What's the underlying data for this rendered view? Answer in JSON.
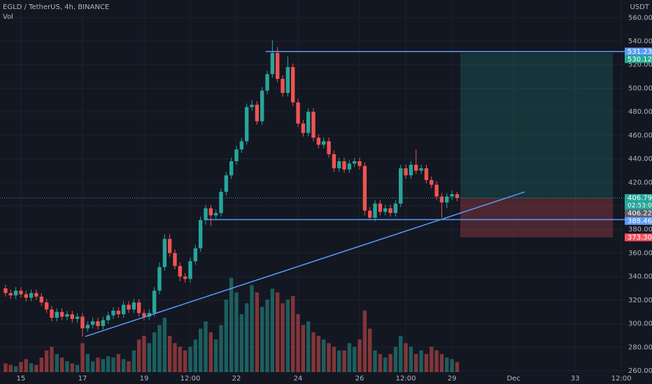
{
  "chart_data": {
    "type": "candlestick",
    "title": "EGLD / TetherUS, 4h, BINANCE",
    "volume_label": "Vol",
    "currency": "USDT",
    "countdown": "02:53:08",
    "grid": true,
    "up_color": "#26a69a",
    "down_color": "#ef5350",
    "x": [
      14.5,
      14.667,
      14.833,
      15,
      15.167,
      15.333,
      15.5,
      15.667,
      15.833,
      16,
      16.167,
      16.333,
      16.5,
      16.667,
      16.833,
      17,
      17.167,
      17.333,
      17.5,
      17.667,
      17.833,
      18,
      18.167,
      18.333,
      18.5,
      18.667,
      18.833,
      19,
      19.167,
      19.333,
      19.5,
      19.667,
      19.833,
      20,
      20.167,
      20.333,
      20.5,
      20.667,
      20.833,
      21,
      21.167,
      21.333,
      21.5,
      21.667,
      21.833,
      22,
      22.167,
      22.333,
      22.5,
      22.667,
      22.833,
      23,
      23.167,
      23.333,
      23.5,
      23.667,
      23.833,
      24,
      24.167,
      24.333,
      24.5,
      24.667,
      24.833,
      25,
      25.167,
      25.333,
      25.5,
      25.667,
      25.833,
      26,
      26.167,
      26.333,
      26.5,
      26.667,
      26.833,
      27,
      27.167,
      27.333,
      27.5,
      27.667,
      27.833,
      28,
      28.167,
      28.333,
      28.5,
      28.667,
      28.833,
      29,
      29.167
    ],
    "open": [
      330,
      326,
      324,
      328,
      325,
      322,
      326,
      323,
      318,
      312,
      305,
      310,
      306,
      308,
      304,
      306,
      296,
      299,
      302,
      298,
      303,
      307,
      311,
      308,
      316,
      312,
      318,
      309,
      306,
      309,
      328,
      348,
      372,
      360,
      349,
      340,
      338,
      353,
      364,
      388,
      398,
      392,
      394,
      412,
      426,
      438,
      448,
      455,
      484,
      486,
      472,
      498,
      512,
      530,
      508,
      496,
      518,
      488,
      470,
      462,
      480,
      458,
      452,
      455,
      444,
      432,
      438,
      431,
      436,
      438,
      434,
      396,
      390,
      402,
      395,
      398,
      394,
      402,
      432,
      426,
      435,
      430,
      432,
      422,
      418,
      408,
      403,
      408,
      410
    ],
    "high": [
      333,
      329,
      331,
      331,
      328,
      329,
      329,
      326,
      321,
      315,
      313,
      313,
      311,
      311,
      309,
      309,
      302,
      305,
      305,
      306,
      310,
      314,
      314,
      319,
      319,
      321,
      321,
      312,
      312,
      331,
      352,
      376,
      376,
      363,
      352,
      343,
      356,
      367,
      391,
      401,
      401,
      397,
      415,
      429,
      441,
      451,
      458,
      487,
      490,
      489,
      501,
      515,
      541,
      535,
      511,
      527,
      521,
      491,
      473,
      483,
      483,
      461,
      458,
      458,
      447,
      441,
      441,
      439,
      441,
      441,
      437,
      399,
      405,
      405,
      401,
      401,
      405,
      435,
      435,
      438,
      448,
      435,
      435,
      425,
      421,
      411,
      411,
      413,
      412
    ],
    "low": [
      323,
      321,
      321,
      322,
      319,
      319,
      320,
      315,
      309,
      302,
      302,
      303,
      303,
      301,
      301,
      289,
      293,
      296,
      295,
      295,
      300,
      304,
      305,
      305,
      309,
      309,
      306,
      303,
      303,
      306,
      325,
      345,
      357,
      346,
      336,
      335,
      335,
      350,
      361,
      384,
      383,
      389,
      391,
      409,
      423,
      435,
      445,
      452,
      481,
      469,
      469,
      495,
      509,
      505,
      493,
      493,
      485,
      467,
      459,
      459,
      455,
      449,
      449,
      441,
      429,
      429,
      428,
      428,
      433,
      431,
      392,
      388,
      387,
      392,
      392,
      391,
      391,
      399,
      423,
      423,
      427,
      427,
      419,
      415,
      405,
      390,
      398,
      405,
      404
    ],
    "close": [
      326,
      324,
      328,
      325,
      322,
      326,
      323,
      318,
      312,
      305,
      310,
      306,
      308,
      304,
      306,
      296,
      299,
      302,
      298,
      303,
      307,
      311,
      308,
      316,
      312,
      318,
      309,
      306,
      309,
      328,
      348,
      372,
      360,
      349,
      340,
      338,
      353,
      364,
      388,
      398,
      392,
      394,
      412,
      426,
      438,
      448,
      455,
      484,
      486,
      472,
      498,
      512,
      530,
      508,
      496,
      518,
      488,
      470,
      462,
      480,
      458,
      452,
      455,
      444,
      432,
      438,
      431,
      436,
      438,
      434,
      396,
      390,
      402,
      395,
      398,
      394,
      402,
      432,
      426,
      435,
      430,
      432,
      422,
      418,
      408,
      403,
      408,
      410,
      406.79
    ],
    "volume": [
      12,
      10,
      8,
      14,
      18,
      12,
      10,
      20,
      30,
      35,
      25,
      20,
      15,
      12,
      10,
      40,
      25,
      15,
      20,
      18,
      22,
      20,
      25,
      18,
      15,
      30,
      45,
      50,
      40,
      55,
      65,
      75,
      50,
      40,
      35,
      30,
      35,
      45,
      60,
      70,
      55,
      45,
      65,
      100,
      130,
      110,
      80,
      95,
      120,
      110,
      90,
      100,
      115,
      110,
      95,
      100,
      105,
      80,
      65,
      70,
      55,
      50,
      45,
      40,
      35,
      30,
      30,
      40,
      35,
      45,
      85,
      60,
      30,
      25,
      20,
      25,
      35,
      50,
      40,
      35,
      25,
      30,
      25,
      35,
      30,
      25,
      20,
      18,
      14
    ],
    "xlim": [
      14.32,
      34.61
    ],
    "ylim": [
      258.8,
      575
    ],
    "xticks": [
      15,
      17,
      19,
      {
        "value": 20.5,
        "label": "12:00"
      },
      22,
      24,
      26,
      {
        "value": 27.5,
        "label": "12:00"
      },
      29,
      {
        "value": 31,
        "label": "Dec"
      },
      33,
      {
        "value": 34.5,
        "label": "12:00"
      }
    ],
    "yticks": [
      {
        "value": 560,
        "label": "560.00"
      },
      {
        "value": 540,
        "label": "540.00"
      },
      {
        "value": 520,
        "label": "520.00"
      },
      {
        "value": 500,
        "label": "500.00"
      },
      {
        "value": 480,
        "label": "480.00"
      },
      {
        "value": 460,
        "label": "460.00"
      },
      {
        "value": 440,
        "label": "440.00"
      },
      {
        "value": 420,
        "label": "420.00"
      },
      {
        "value": 400,
        "label": "400.00"
      },
      {
        "value": 380,
        "label": "380.00"
      },
      {
        "value": 360,
        "label": "360.00"
      },
      {
        "value": 340,
        "label": "340.00"
      },
      {
        "value": 320,
        "label": "320.00"
      },
      {
        "value": 300,
        "label": "300.00"
      },
      {
        "value": 280,
        "label": "280.00"
      },
      {
        "value": 260,
        "label": "260.00"
      }
    ],
    "levels": [
      {
        "value": 531.23,
        "start": 22.95,
        "color": "#5b9cf6"
      },
      {
        "value": 388.46,
        "start": 21.02,
        "color": "#5b9cf6"
      }
    ],
    "trendline": {
      "x": [
        17.09,
        31.36
      ],
      "y": [
        289.1,
        411.9
      ],
      "color": "#5b9cf6"
    },
    "position": {
      "start": 29.27,
      "end": 34.23,
      "entry": 406.79,
      "target": 530.12,
      "stop": {
        "value": 373.3,
        "label": "373.30"
      },
      "profit_color": "#22ab94",
      "loss_color": "#f7525f"
    },
    "marker_price": {
      "value": 406.22,
      "color": "#5d606b"
    }
  }
}
